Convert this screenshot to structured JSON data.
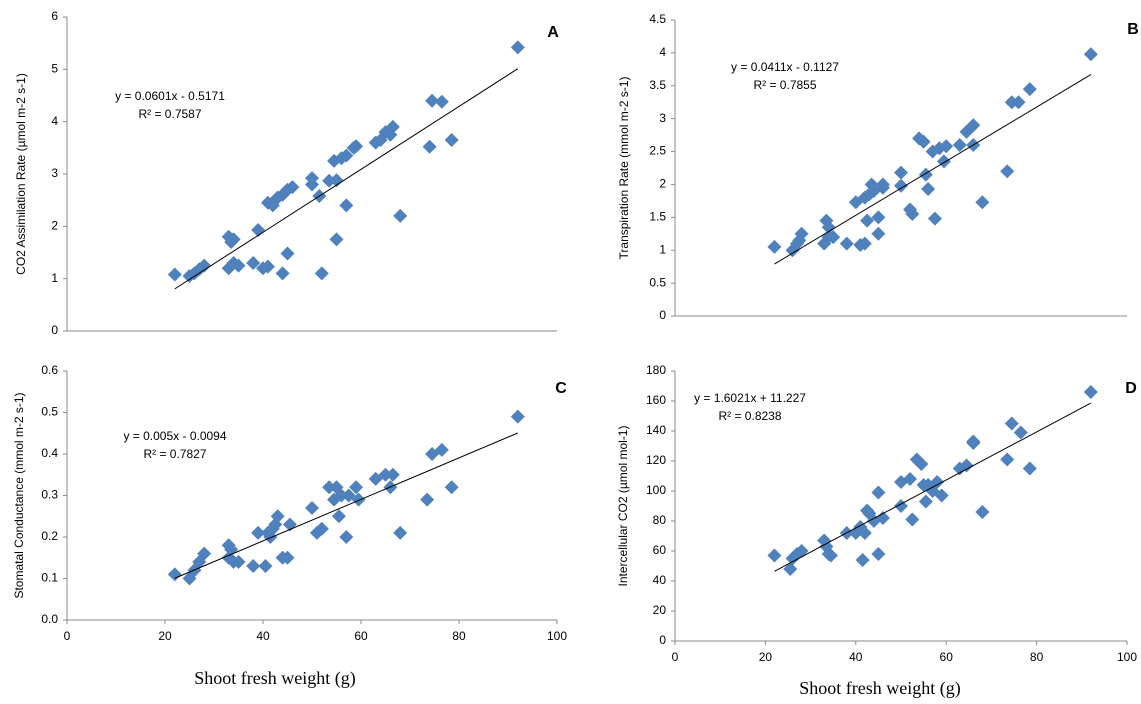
{
  "chart_data": [
    {
      "type": "scatter",
      "label": "A",
      "ylabel": "CO2 Assimilation Rate (µmol m-2 s-1)",
      "annotations": [
        "y = 0.0601x - 0.5171",
        "R² = 0.7587"
      ],
      "color": "#4f81bd",
      "xlim": [
        0,
        100
      ],
      "ylim": [
        0,
        6
      ],
      "yticks": [
        0,
        1,
        2,
        3,
        4,
        5,
        6
      ],
      "x": [
        22,
        25,
        26,
        27,
        28,
        33,
        33,
        33.5,
        34,
        34,
        35,
        38,
        39,
        40,
        41,
        41,
        42,
        42.5,
        43,
        44,
        44,
        45,
        45,
        46,
        50,
        50,
        51.5,
        52,
        53.5,
        54.5,
        55,
        55,
        56,
        57,
        57,
        58.5,
        59,
        63,
        64,
        65,
        66,
        66.5,
        68,
        74,
        74.5,
        76.5,
        78.5,
        92
      ],
      "values": [
        1.08,
        1.05,
        1.1,
        1.18,
        1.25,
        1.2,
        1.8,
        1.7,
        1.3,
        1.75,
        1.25,
        1.3,
        1.93,
        1.2,
        1.23,
        2.45,
        2.4,
        2.5,
        2.55,
        1.1,
        2.6,
        1.48,
        2.7,
        2.75,
        2.8,
        2.92,
        2.58,
        1.1,
        2.87,
        3.25,
        1.75,
        2.88,
        3.3,
        3.35,
        2.4,
        3.5,
        3.53,
        3.6,
        3.65,
        3.8,
        3.75,
        3.9,
        2.2,
        3.52,
        4.4,
        4.38,
        3.65,
        5.42
      ],
      "trendline": {
        "x": [
          22,
          92
        ],
        "values": [
          0.805,
          5.012
        ]
      }
    },
    {
      "type": "scatter",
      "label": "B",
      "ylabel": "Transpiration Rate (mmol m-2 s-1)",
      "annotations": [
        "y = 0.0411x - 0.1127",
        "R² = 0.7855"
      ],
      "color": "#4f81bd",
      "xlim": [
        0,
        100
      ],
      "ylim": [
        0,
        4.5
      ],
      "yticks": [
        0,
        0.5,
        1,
        1.5,
        2,
        2.5,
        3,
        3.5,
        4,
        4.5
      ],
      "x": [
        22,
        26,
        27,
        27.5,
        28,
        33,
        33.5,
        34,
        34,
        35,
        38,
        40,
        41,
        42,
        42,
        42.5,
        43,
        43.5,
        44,
        45,
        45,
        46,
        46,
        50,
        50,
        52,
        52.5,
        54,
        55,
        55.5,
        56,
        57,
        57.5,
        58.5,
        59.5,
        60,
        63,
        64.5,
        66,
        66,
        68,
        73.5,
        74.5,
        76,
        78.5,
        92
      ],
      "values": [
        1.05,
        1.0,
        1.1,
        1.15,
        1.25,
        1.1,
        1.45,
        1.35,
        1.2,
        1.2,
        1.1,
        1.73,
        1.08,
        1.1,
        1.8,
        1.45,
        1.85,
        2.0,
        1.9,
        1.5,
        1.25,
        1.95,
        2.0,
        1.98,
        2.18,
        1.62,
        1.55,
        2.7,
        2.65,
        2.15,
        1.93,
        2.5,
        1.48,
        2.55,
        2.35,
        2.58,
        2.6,
        2.8,
        2.9,
        2.6,
        1.73,
        2.2,
        3.25,
        3.25,
        3.45,
        3.98
      ],
      "trendline": {
        "x": [
          22,
          92
        ],
        "values": [
          0.79,
          3.67
        ]
      }
    },
    {
      "type": "scatter",
      "label": "C",
      "ylabel": "Stomatal Conductance (mmol m-2 s-1)",
      "xlabel": "Shoot fresh weight (g)",
      "annotations": [
        "y = 0.005x - 0.0094",
        "R² = 0.7827"
      ],
      "color": "#4f81bd",
      "xlim": [
        0,
        100
      ],
      "xticks": [
        0,
        20,
        40,
        60,
        80,
        100
      ],
      "ylim": [
        0,
        0.6
      ],
      "yticks": [
        {
          "value": 0,
          "label": "0.0"
        },
        0.1,
        0.2,
        0.3,
        0.4,
        0.5,
        0.6
      ],
      "x": [
        22,
        25,
        26,
        27,
        28,
        33,
        33,
        33.5,
        34,
        35,
        38,
        39,
        40.5,
        41,
        41.5,
        42,
        42.5,
        43,
        44,
        45,
        45.5,
        50,
        51,
        52,
        53.5,
        54.5,
        55,
        55.5,
        56,
        57,
        57.5,
        59,
        59.5,
        63,
        65,
        66,
        66.5,
        68,
        73.5,
        74.5,
        76.5,
        78.5,
        92
      ],
      "values": [
        0.11,
        0.1,
        0.12,
        0.14,
        0.16,
        0.15,
        0.18,
        0.17,
        0.14,
        0.14,
        0.13,
        0.21,
        0.13,
        0.21,
        0.2,
        0.22,
        0.23,
        0.25,
        0.15,
        0.15,
        0.23,
        0.27,
        0.21,
        0.22,
        0.32,
        0.29,
        0.32,
        0.25,
        0.3,
        0.2,
        0.3,
        0.32,
        0.29,
        0.34,
        0.35,
        0.32,
        0.35,
        0.21,
        0.29,
        0.4,
        0.41,
        0.32,
        0.49
      ],
      "trendline": {
        "x": [
          22,
          92
        ],
        "values": [
          0.1006,
          0.4506
        ]
      }
    },
    {
      "type": "scatter",
      "label": "D",
      "ylabel": "Intercellular CO2 (µmol mol-1)",
      "xlabel": "Shoot fresh weight (g)",
      "annotations": [
        "y = 1.6021x + 11.227",
        "R² = 0.8238"
      ],
      "color": "#4f81bd",
      "xlim": [
        0,
        100
      ],
      "xticks": [
        0,
        20,
        40,
        60,
        80,
        100
      ],
      "ylim": [
        0,
        180
      ],
      "yticks": [
        0,
        20,
        40,
        60,
        80,
        100,
        120,
        140,
        160,
        180
      ],
      "x": [
        22,
        25.5,
        26,
        27,
        28,
        33,
        33.5,
        34,
        34.5,
        38,
        40,
        41,
        41.5,
        42,
        42.5,
        43,
        44,
        45,
        45,
        46,
        50,
        50,
        52,
        52.5,
        53.5,
        54.5,
        55,
        55.5,
        56,
        57,
        58,
        59,
        63,
        64.5,
        66,
        66,
        68,
        73.5,
        74.5,
        76.5,
        78.5,
        92
      ],
      "values": [
        57,
        48,
        55,
        58,
        60,
        67,
        63,
        58,
        57,
        72,
        72,
        76,
        54,
        72,
        87,
        85,
        80,
        58,
        99,
        82,
        90,
        106,
        108,
        81,
        121,
        118,
        104,
        93,
        104,
        100,
        106,
        97,
        115,
        117,
        133,
        132,
        86,
        121,
        145,
        139,
        115,
        166
      ],
      "trendline": {
        "x": [
          22,
          92
        ],
        "values": [
          46.47,
          158.6
        ]
      }
    }
  ]
}
